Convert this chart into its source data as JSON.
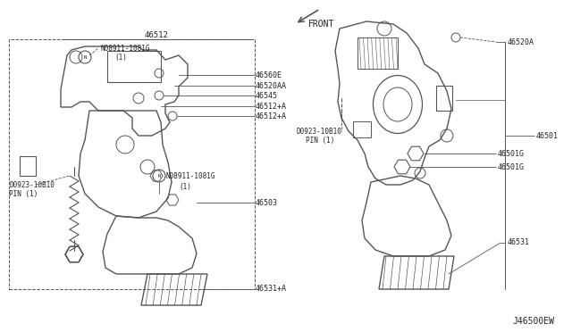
{
  "bg_color": "#ffffff",
  "line_color": "#555555",
  "text_color": "#222222",
  "fig_width": 6.4,
  "fig_height": 3.72,
  "dpi": 100,
  "diagram_label": "J46500EW",
  "left_label_46512": "46512",
  "left_label_46560E": "46560E",
  "left_label_46520AA": "46520AA",
  "left_label_46545": "46545",
  "left_label_46512A_1": "46512+A",
  "left_label_46512A_2": "46512+A",
  "left_label_N1": "N08911-1081G",
  "left_label_N1b": "(1)",
  "left_label_N2": "N08911-1081G",
  "left_label_N2b": "(1)",
  "left_label_pin1": "D0923-10B10",
  "left_label_pin1b": "PIN (1)",
  "left_label_46503": "46503",
  "left_label_46531A": "46531+A",
  "right_label_46520A": "46520A",
  "right_label_46501": "46501",
  "right_label_46501G_1": "46501G",
  "right_label_46501G_2": "46501G",
  "right_label_pin": "D0923-10B10",
  "right_label_pinb": "PIN (1)",
  "right_label_46531": "46531",
  "front_label": "FRONT"
}
